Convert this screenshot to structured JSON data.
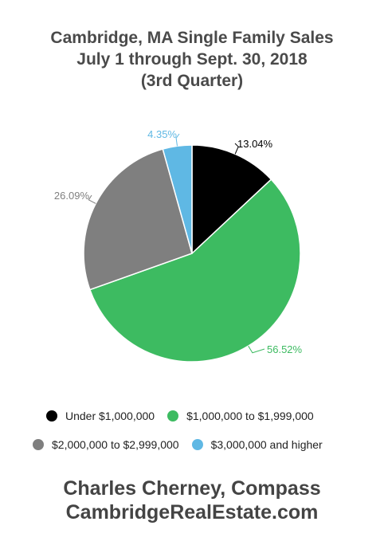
{
  "title_lines": [
    "Cambridge, MA Single Family Sales",
    "July 1 through Sept. 30, 2018",
    "(3rd Quarter)"
  ],
  "chart_data": {
    "type": "pie",
    "slices": [
      {
        "label": "Under $1,000,000",
        "value": 13.04,
        "value_label": "13.04%",
        "color": "#000000"
      },
      {
        "label": "$1,000,000 to $1,999,000",
        "value": 56.52,
        "value_label": "56.52%",
        "color": "#3dbb61"
      },
      {
        "label": "$2,000,000 to $2,999,000",
        "value": 26.09,
        "value_label": "26.09%",
        "color": "#7f7f7f"
      },
      {
        "label": "$3,000,000 and higher",
        "value": 4.35,
        "value_label": "4.35%",
        "color": "#5fb8e4"
      }
    ],
    "start_angle_deg": 0,
    "direction": "clockwise",
    "legend_placement": "bottom"
  },
  "footer_lines": [
    "Charles Cherney, Compass",
    "CambridgeRealEstate.com"
  ]
}
